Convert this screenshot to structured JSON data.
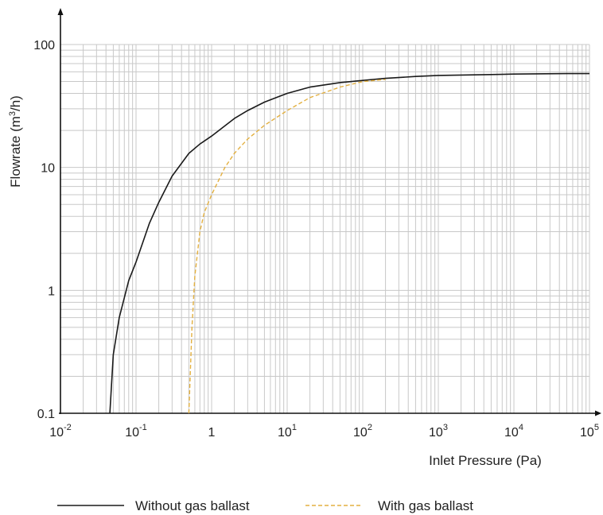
{
  "chart_data": {
    "type": "line",
    "xlabel": "Inlet Pressure (Pa)",
    "ylabel": "Flowrate (m3/h)",
    "x_scale": "log",
    "y_scale": "log",
    "xlim": [
      0.01,
      100000
    ],
    "ylim": [
      0.1,
      100
    ],
    "x_ticks": [
      {
        "base": "10",
        "exp": "-2",
        "value": 0.01
      },
      {
        "base": "10",
        "exp": "-1",
        "value": 0.1
      },
      {
        "base": "1",
        "exp": "",
        "value": 1
      },
      {
        "base": "10",
        "exp": "1",
        "value": 10
      },
      {
        "base": "10",
        "exp": "2",
        "value": 100
      },
      {
        "base": "10",
        "exp": "3",
        "value": 1000
      },
      {
        "base": "10",
        "exp": "4",
        "value": 10000
      },
      {
        "base": "10",
        "exp": "5",
        "value": 100000
      }
    ],
    "y_ticks": [
      {
        "label": "0.1",
        "value": 0.1
      },
      {
        "label": "1",
        "value": 1
      },
      {
        "label": "10",
        "value": 10
      },
      {
        "label": "100",
        "value": 100
      }
    ],
    "grid": true,
    "legend_position": "bottom",
    "series": [
      {
        "name": "Without gas ballast",
        "color": "#1a1a1a",
        "dash": "solid",
        "x": [
          0.045,
          0.05,
          0.06,
          0.08,
          0.1,
          0.15,
          0.2,
          0.3,
          0.5,
          0.7,
          1,
          2,
          3,
          5,
          8,
          10,
          20,
          50,
          100,
          200,
          500,
          1000,
          5000,
          10000,
          50000,
          100000
        ],
        "y": [
          0.1,
          0.3,
          0.6,
          1.2,
          1.7,
          3.5,
          5.2,
          8.5,
          13,
          15.5,
          18,
          25,
          29,
          34,
          38,
          40,
          45,
          49,
          51,
          53,
          55,
          56,
          57,
          57.5,
          58,
          58
        ]
      },
      {
        "name": "With gas ballast",
        "color": "#e3b040",
        "dash": "dashed",
        "x": [
          0.5,
          0.55,
          0.6,
          0.7,
          0.8,
          1,
          1.5,
          2,
          3,
          5,
          10,
          20,
          50,
          100,
          200
        ],
        "y": [
          0.1,
          0.5,
          1.3,
          3,
          4.3,
          6,
          10,
          13,
          17,
          22,
          29,
          37,
          45,
          50,
          52
        ]
      }
    ]
  }
}
